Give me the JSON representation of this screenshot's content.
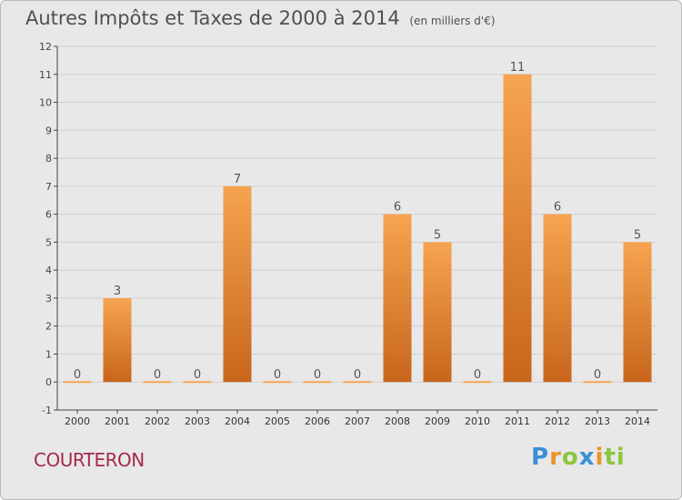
{
  "header": {
    "title": "Autres Impôts et Taxes de 2000 à 2014",
    "subtitle": "(en milliers d'€)"
  },
  "footer": {
    "town": "COURTERON",
    "logo": "Proxiti"
  },
  "colors": {
    "bar_top": "#f6a452",
    "bar_bottom": "#c8661b",
    "axis": "#444444",
    "grid": "#d0d0d0",
    "background": "#e8e8e8"
  },
  "chart_data": {
    "type": "bar",
    "title": "Autres Impôts et Taxes de 2000 à 2014",
    "subtitle": "(en milliers d'€)",
    "categories": [
      "2000",
      "2001",
      "2002",
      "2003",
      "2004",
      "2005",
      "2006",
      "2007",
      "2008",
      "2009",
      "2010",
      "2011",
      "2012",
      "2013",
      "2014"
    ],
    "values": [
      0,
      3,
      0,
      0,
      7,
      0,
      0,
      0,
      6,
      5,
      0,
      11,
      6,
      0,
      5
    ],
    "data_labels": [
      "0",
      "3",
      "0",
      "0",
      "7",
      "0",
      "0",
      "0",
      "6",
      "5",
      "0",
      "11",
      "6",
      "0",
      "5"
    ],
    "ylim": [
      -1,
      12
    ],
    "yticks": [
      -1,
      0,
      1,
      2,
      3,
      4,
      5,
      6,
      7,
      8,
      9,
      10,
      11,
      12
    ],
    "ytick_labels": [
      "-1",
      "0",
      "1",
      "2",
      "3",
      "4",
      "5",
      "6",
      "7",
      "8",
      "9",
      "10",
      "11",
      "12"
    ],
    "grid": true,
    "legend": "none"
  }
}
